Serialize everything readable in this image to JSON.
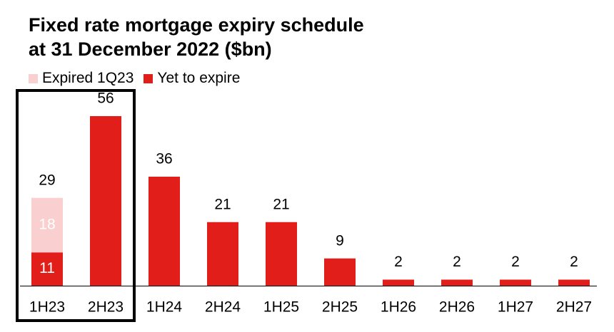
{
  "colors": {
    "expired": "#f9cfcf",
    "yet_to_expire": "#e21e1a",
    "axis": "#000000",
    "highlight_box": "#000000",
    "label_on_bar": "#ffffff",
    "label": "#000000"
  },
  "chart_data": {
    "type": "bar",
    "stacked": true,
    "title_line1": "Fixed rate mortgage expiry schedule",
    "title_line2": "at 31 December 2022 ($bn)",
    "xlabel": "",
    "ylabel": "",
    "categories": [
      "1H23",
      "2H23",
      "1H24",
      "2H24",
      "1H25",
      "2H25",
      "1H26",
      "2H26",
      "1H27",
      "2H27"
    ],
    "series": [
      {
        "name": "Yet to expire",
        "values": [
          11,
          56,
          36,
          21,
          21,
          9,
          2,
          2,
          2,
          2
        ]
      },
      {
        "name": "Expired 1Q23",
        "values": [
          18,
          0,
          0,
          0,
          0,
          0,
          0,
          0,
          0,
          0
        ]
      }
    ],
    "totals": [
      "29",
      "56",
      "36",
      "21",
      "21",
      "9",
      "2",
      "2",
      "2",
      "2"
    ],
    "inbar_labels": {
      "yet_to_expire": [
        "11",
        "",
        "",
        "",
        "",
        "",
        "",
        "",
        "",
        ""
      ],
      "expired": [
        "18",
        "",
        "",
        "",
        "",
        "",
        "",
        "",
        "",
        ""
      ]
    },
    "ylim": [
      0,
      62
    ],
    "grid": false,
    "legend_position": "top-left",
    "highlighted_categories": [
      "1H23",
      "2H23"
    ]
  }
}
